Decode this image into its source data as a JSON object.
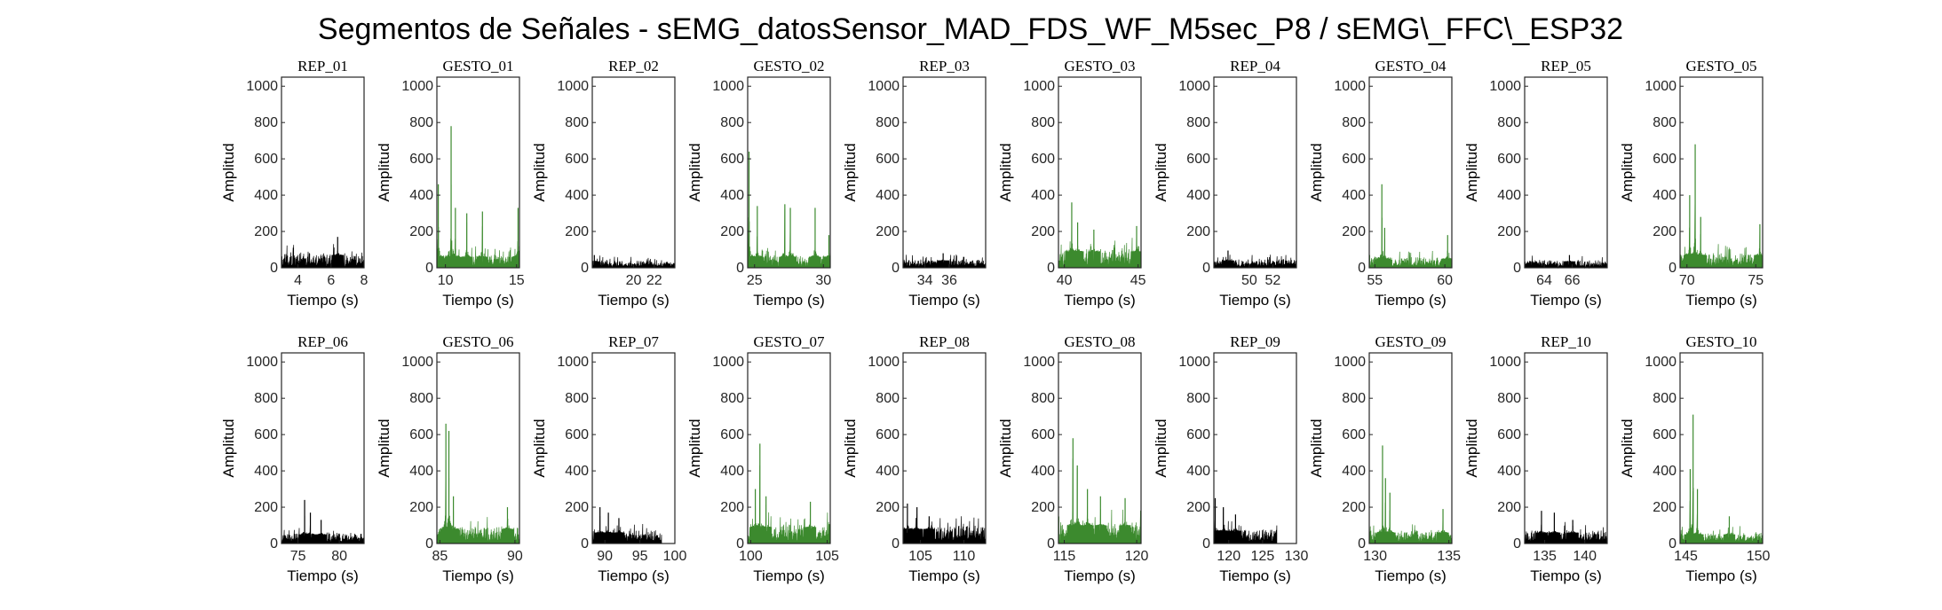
{
  "figure_title": "Segmentos de Señales - sEMG_datosSensor_MAD_FDS_WF_M5sec_P8 / sEMG\\_FFC\\_ESP32",
  "colors": {
    "rep": "#000000",
    "gesto": "#3c8a2e",
    "axis": "#262626"
  },
  "chart_data": [
    {
      "type": "line",
      "title": "REP_01",
      "xlabel": "Tiempo (s)",
      "ylabel": "Amplitud",
      "xlim": [
        3,
        8
      ],
      "ylim": [
        0,
        1050
      ],
      "xticks": [
        4,
        6,
        8
      ],
      "yticks": [
        0,
        200,
        400,
        600,
        800,
        1000
      ],
      "color": "#000000",
      "signal": {
        "base": 70,
        "noise": 70,
        "spikes": [
          [
            6.4,
            170
          ]
        ]
      }
    },
    {
      "type": "line",
      "title": "GESTO_01",
      "xlabel": "Tiempo (s)",
      "ylabel": "Amplitud",
      "xlim": [
        9.4,
        15.2
      ],
      "ylim": [
        0,
        1050
      ],
      "xticks": [
        10,
        15
      ],
      "yticks": [
        0,
        200,
        400,
        600,
        800,
        1000
      ],
      "color": "#3c8a2e",
      "signal": {
        "base": 60,
        "noise": 50,
        "spikes": [
          [
            9.5,
            460
          ],
          [
            10.4,
            780
          ],
          [
            10.7,
            330
          ],
          [
            11.5,
            300
          ],
          [
            12.6,
            310
          ],
          [
            15.1,
            330
          ]
        ]
      }
    },
    {
      "type": "line",
      "title": "REP_02",
      "xlabel": "Tiempo (s)",
      "ylabel": "Amplitud",
      "xlim": [
        16,
        24
      ],
      "ylim": [
        0,
        1050
      ],
      "xticks": [
        20,
        22
      ],
      "yticks": [
        0,
        200,
        400,
        600,
        800,
        1000
      ],
      "color": "#000000",
      "signal": {
        "base": 35,
        "noise": 35,
        "spikes": [
          [
            16.2,
            70
          ]
        ]
      }
    },
    {
      "type": "line",
      "title": "GESTO_02",
      "xlabel": "Tiempo (s)",
      "ylabel": "Amplitud",
      "xlim": [
        24.5,
        30.5
      ],
      "ylim": [
        0,
        1050
      ],
      "xticks": [
        25,
        30
      ],
      "yticks": [
        0,
        200,
        400,
        600,
        800,
        1000
      ],
      "color": "#3c8a2e",
      "signal": {
        "base": 60,
        "noise": 60,
        "spikes": [
          [
            24.6,
            640
          ],
          [
            25.2,
            340
          ],
          [
            27.2,
            350
          ],
          [
            27.6,
            330
          ],
          [
            29.4,
            330
          ],
          [
            30.4,
            180
          ]
        ]
      }
    },
    {
      "type": "line",
      "title": "REP_03",
      "xlabel": "Tiempo (s)",
      "ylabel": "Amplitud",
      "xlim": [
        32.2,
        39
      ],
      "ylim": [
        0,
        1050
      ],
      "xticks": [
        34,
        36
      ],
      "yticks": [
        0,
        200,
        400,
        600,
        800,
        1000
      ],
      "color": "#000000",
      "signal": {
        "base": 40,
        "noise": 35,
        "spikes": [
          [
            35.5,
            80
          ]
        ]
      }
    },
    {
      "type": "line",
      "title": "GESTO_03",
      "xlabel": "Tiempo (s)",
      "ylabel": "Amplitud",
      "xlim": [
        39.6,
        45.2
      ],
      "ylim": [
        0,
        1050
      ],
      "xticks": [
        40,
        45
      ],
      "yticks": [
        0,
        200,
        400,
        600,
        800,
        1000
      ],
      "color": "#3c8a2e",
      "signal": {
        "base": 90,
        "noise": 80,
        "spikes": [
          [
            40.5,
            360
          ],
          [
            40.9,
            250
          ],
          [
            42.0,
            210
          ],
          [
            44.9,
            230
          ]
        ]
      }
    },
    {
      "type": "line",
      "title": "REP_04",
      "xlabel": "Tiempo (s)",
      "ylabel": "Amplitud",
      "xlim": [
        47,
        54
      ],
      "ylim": [
        0,
        1050
      ],
      "xticks": [
        50,
        52
      ],
      "yticks": [
        0,
        200,
        400,
        600,
        800,
        1000
      ],
      "color": "#000000",
      "signal": {
        "base": 40,
        "noise": 40,
        "spikes": [
          [
            48.2,
            95
          ]
        ]
      }
    },
    {
      "type": "line",
      "title": "GESTO_04",
      "xlabel": "Tiempo (s)",
      "ylabel": "Amplitud",
      "xlim": [
        54.6,
        60.5
      ],
      "ylim": [
        0,
        1050
      ],
      "xticks": [
        55,
        60
      ],
      "yticks": [
        0,
        200,
        400,
        600,
        800,
        1000
      ],
      "color": "#3c8a2e",
      "signal": {
        "base": 50,
        "noise": 35,
        "spikes": [
          [
            55.5,
            460
          ],
          [
            55.7,
            220
          ],
          [
            60.2,
            180
          ]
        ]
      }
    },
    {
      "type": "line",
      "title": "REP_05",
      "xlabel": "Tiempo (s)",
      "ylabel": "Amplitud",
      "xlim": [
        62.6,
        68.5
      ],
      "ylim": [
        0,
        1050
      ],
      "xticks": [
        64,
        66
      ],
      "yticks": [
        0,
        200,
        400,
        600,
        800,
        1000
      ],
      "color": "#000000",
      "signal": {
        "base": 35,
        "noise": 35,
        "spikes": [
          [
            65.8,
            70
          ]
        ]
      }
    },
    {
      "type": "line",
      "title": "GESTO_05",
      "xlabel": "Tiempo (s)",
      "ylabel": "Amplitud",
      "xlim": [
        69.5,
        75.5
      ],
      "ylim": [
        0,
        1050
      ],
      "xticks": [
        70,
        75
      ],
      "yticks": [
        0,
        200,
        400,
        600,
        800,
        1000
      ],
      "color": "#3c8a2e",
      "signal": {
        "base": 70,
        "noise": 70,
        "spikes": [
          [
            70.2,
            400
          ],
          [
            70.6,
            680
          ],
          [
            71.0,
            280
          ],
          [
            75.3,
            240
          ]
        ]
      }
    },
    {
      "type": "line",
      "title": "REP_06",
      "xlabel": "Tiempo (s)",
      "ylabel": "Amplitud",
      "xlim": [
        73,
        83
      ],
      "ylim": [
        0,
        1050
      ],
      "xticks": [
        75,
        80
      ],
      "yticks": [
        0,
        200,
        400,
        600,
        800,
        1000
      ],
      "color": "#000000",
      "signal": {
        "base": 50,
        "noise": 50,
        "spikes": [
          [
            75.8,
            240
          ],
          [
            76.5,
            170
          ],
          [
            77.8,
            130
          ]
        ]
      }
    },
    {
      "type": "line",
      "title": "GESTO_06",
      "xlabel": "Tiempo (s)",
      "ylabel": "Amplitud",
      "xlim": [
        84.8,
        90.3
      ],
      "ylim": [
        0,
        1050
      ],
      "xticks": [
        85,
        90
      ],
      "yticks": [
        0,
        200,
        400,
        600,
        800,
        1000
      ],
      "color": "#3c8a2e",
      "signal": {
        "base": 80,
        "noise": 80,
        "spikes": [
          [
            85.4,
            660
          ],
          [
            85.6,
            620
          ],
          [
            85.9,
            260
          ],
          [
            89.5,
            200
          ]
        ]
      }
    },
    {
      "type": "line",
      "title": "REP_07",
      "xlabel": "Tiempo (s)",
      "ylabel": "Amplitud",
      "xlim": [
        88.2,
        100
      ],
      "ylim": [
        0,
        1050
      ],
      "xticks": [
        90,
        95,
        100
      ],
      "yticks": [
        0,
        200,
        400,
        600,
        800,
        1000
      ],
      "color": "#000000",
      "signal": {
        "base": 60,
        "noise": 60,
        "spikes": [
          [
            89.3,
            200
          ],
          [
            90.5,
            170
          ],
          [
            92.0,
            140
          ]
        ],
        "end": 98.1
      }
    },
    {
      "type": "line",
      "title": "GESTO_07",
      "xlabel": "Tiempo (s)",
      "ylabel": "Amplitud",
      "xlim": [
        99.8,
        105.2
      ],
      "ylim": [
        0,
        1050
      ],
      "xticks": [
        100,
        105
      ],
      "yticks": [
        0,
        200,
        400,
        600,
        800,
        1000
      ],
      "color": "#3c8a2e",
      "signal": {
        "base": 90,
        "noise": 90,
        "spikes": [
          [
            100.3,
            300
          ],
          [
            100.6,
            550
          ],
          [
            101.0,
            260
          ],
          [
            103.9,
            230
          ]
        ]
      }
    },
    {
      "type": "line",
      "title": "REP_08",
      "xlabel": "Tiempo (s)",
      "ylabel": "Amplitud",
      "xlim": [
        103,
        112.5
      ],
      "ylim": [
        0,
        1050
      ],
      "xticks": [
        105,
        110
      ],
      "yticks": [
        0,
        200,
        400,
        600,
        800,
        1000
      ],
      "color": "#000000",
      "signal": {
        "base": 80,
        "noise": 80,
        "spikes": [
          [
            103.5,
            220
          ],
          [
            104.6,
            200
          ],
          [
            106.0,
            150
          ]
        ]
      }
    },
    {
      "type": "line",
      "title": "GESTO_08",
      "xlabel": "Tiempo (s)",
      "ylabel": "Amplitud",
      "xlim": [
        114.6,
        120.3
      ],
      "ylim": [
        0,
        1050
      ],
      "xticks": [
        115,
        120
      ],
      "yticks": [
        0,
        200,
        400,
        600,
        800,
        1000
      ],
      "color": "#3c8a2e",
      "signal": {
        "base": 100,
        "noise": 90,
        "spikes": [
          [
            115.6,
            580
          ],
          [
            115.9,
            430
          ],
          [
            116.6,
            300
          ],
          [
            117.5,
            260
          ],
          [
            119.2,
            250
          ]
        ]
      }
    },
    {
      "type": "line",
      "title": "REP_09",
      "xlabel": "Tiempo (s)",
      "ylabel": "Amplitud",
      "xlim": [
        117.8,
        130
      ],
      "ylim": [
        0,
        1050
      ],
      "xticks": [
        120,
        125,
        130
      ],
      "yticks": [
        0,
        200,
        400,
        600,
        800,
        1000
      ],
      "color": "#000000",
      "signal": {
        "base": 70,
        "noise": 70,
        "spikes": [
          [
            118.0,
            250
          ],
          [
            119.2,
            200
          ],
          [
            121.0,
            160
          ]
        ],
        "end": 127.1
      }
    },
    {
      "type": "line",
      "title": "GESTO_09",
      "xlabel": "Tiempo (s)",
      "ylabel": "Amplitud",
      "xlim": [
        129.6,
        135.2
      ],
      "ylim": [
        0,
        1050
      ],
      "xticks": [
        130,
        135
      ],
      "yticks": [
        0,
        200,
        400,
        600,
        800,
        1000
      ],
      "color": "#3c8a2e",
      "signal": {
        "base": 60,
        "noise": 60,
        "spikes": [
          [
            130.5,
            540
          ],
          [
            130.7,
            360
          ],
          [
            131.0,
            280
          ],
          [
            134.6,
            190
          ]
        ]
      }
    },
    {
      "type": "line",
      "title": "REP_10",
      "xlabel": "Tiempo (s)",
      "ylabel": "Amplitud",
      "xlim": [
        132.5,
        142.8
      ],
      "ylim": [
        0,
        1050
      ],
      "xticks": [
        135,
        140
      ],
      "yticks": [
        0,
        200,
        400,
        600,
        800,
        1000
      ],
      "color": "#000000",
      "signal": {
        "base": 60,
        "noise": 60,
        "spikes": [
          [
            134.6,
            180
          ],
          [
            136.2,
            170
          ],
          [
            138.5,
            130
          ]
        ]
      }
    },
    {
      "type": "line",
      "title": "GESTO_10",
      "xlabel": "Tiempo (s)",
      "ylabel": "Amplitud",
      "xlim": [
        144.6,
        150.3
      ],
      "ylim": [
        0,
        1050
      ],
      "xticks": [
        145,
        150
      ],
      "yticks": [
        0,
        200,
        400,
        600,
        800,
        1000
      ],
      "color": "#3c8a2e",
      "signal": {
        "base": 50,
        "noise": 50,
        "spikes": [
          [
            145.3,
            410
          ],
          [
            145.5,
            710
          ],
          [
            145.8,
            300
          ],
          [
            148.0,
            150
          ]
        ]
      }
    }
  ]
}
